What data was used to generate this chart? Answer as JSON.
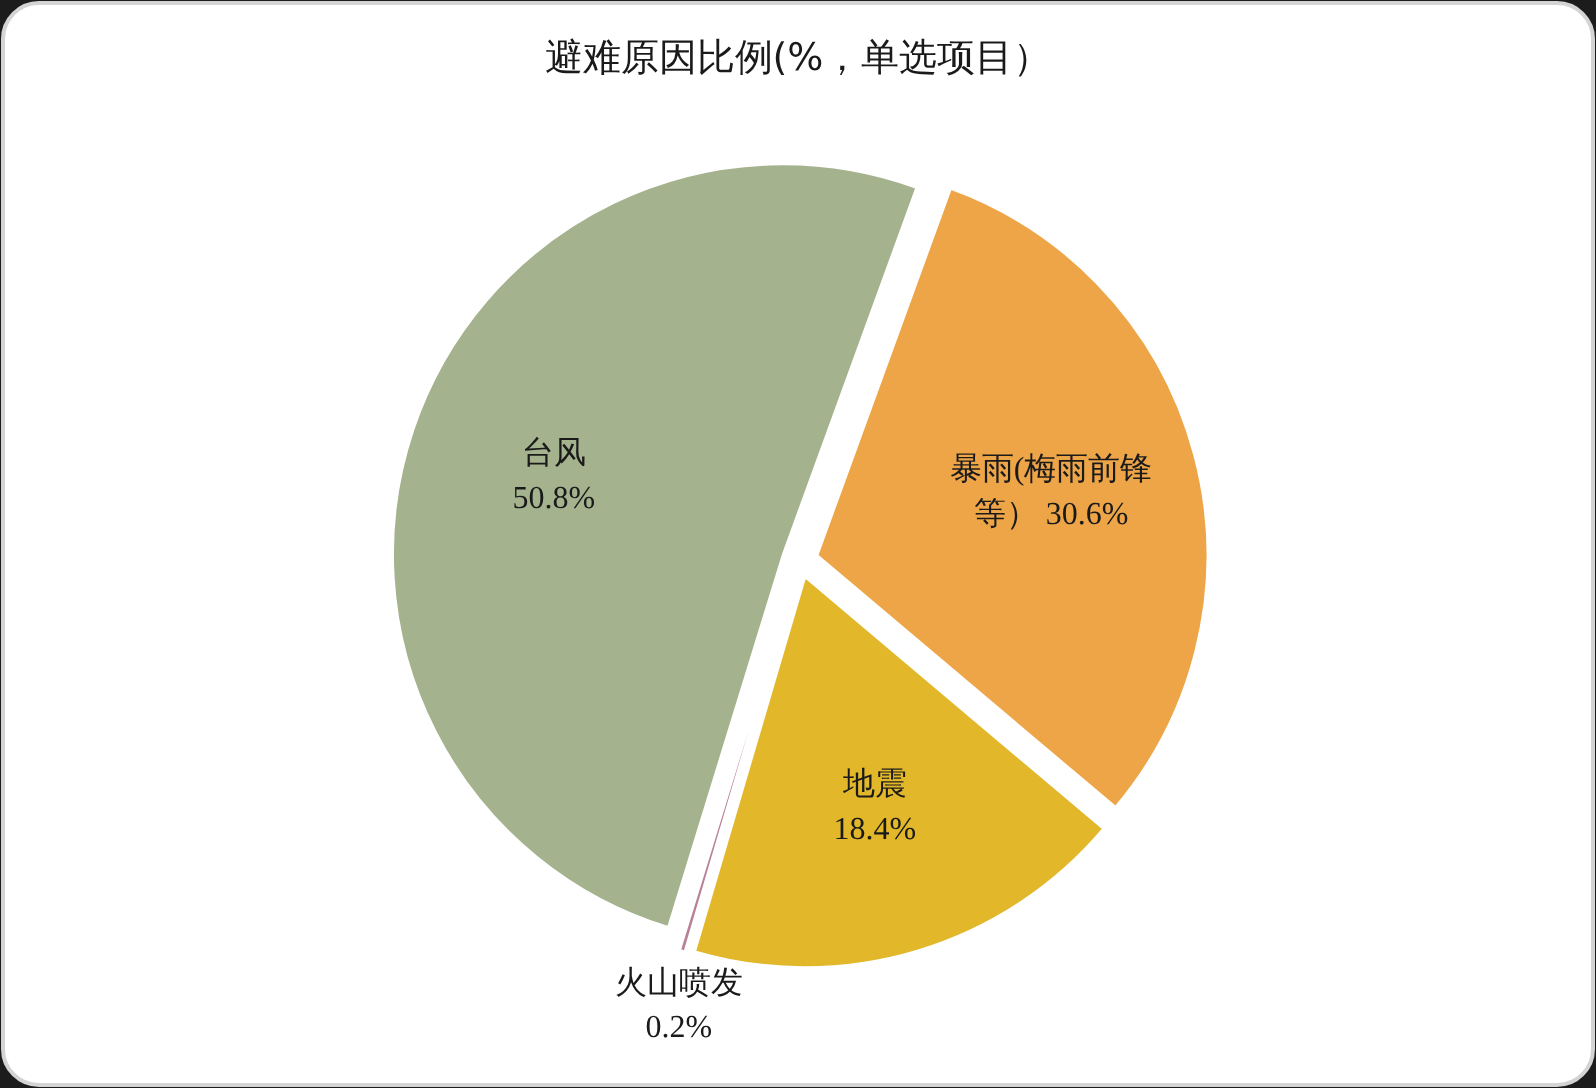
{
  "chart_data": {
    "type": "pie",
    "title": "避难原因比例(%，单选项目）",
    "categories": [
      "暴雨(梅雨前锋等）",
      "地震",
      "火山喷发",
      "台风"
    ],
    "values": [
      30.6,
      18.4,
      0.2,
      50.8
    ],
    "colors": [
      "#eda548",
      "#e2b72a",
      "#b98198",
      "#a4b28e"
    ],
    "value_labels": [
      "30.6%",
      "18.4%",
      "0.2%",
      "50.8%"
    ]
  }
}
